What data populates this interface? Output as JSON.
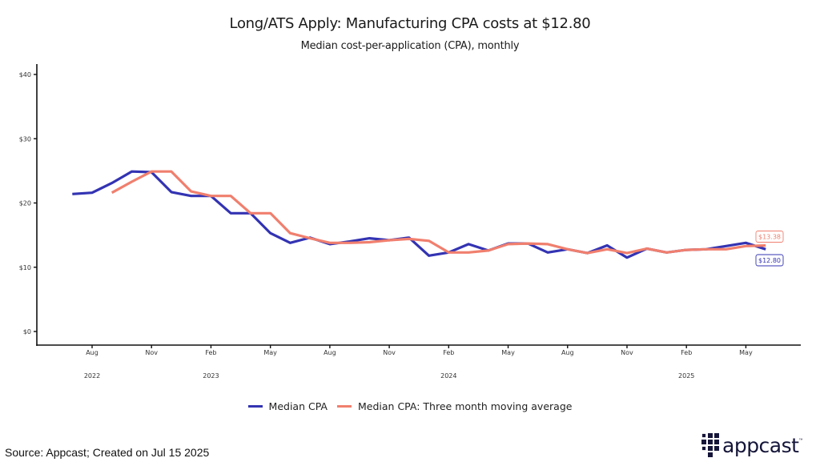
{
  "title": "Long/ATS Apply: Manufacturing CPA costs at $12.80",
  "subtitle": "Median cost-per-application (CPA), monthly",
  "source": "Source: Appcast; Created on Jul 15 2025",
  "logo": {
    "text": "appcast",
    "tm": "™"
  },
  "colors": {
    "median": "#3333b3",
    "moving_avg": "#f07f6e"
  },
  "chart_data": {
    "type": "line",
    "title": "Long/ATS Apply: Manufacturing CPA costs at $12.80",
    "subtitle": "Median cost-per-application (CPA), monthly",
    "xlabel": "",
    "ylabel": "",
    "ylim": [
      0,
      40
    ],
    "yticks": [
      0,
      10,
      20,
      30,
      40
    ],
    "ytick_labels": [
      "$0",
      "$10",
      "$20",
      "$30",
      "$40"
    ],
    "x_start": "2022-06",
    "x_end": "2025-07",
    "xticks": [
      {
        "month": "2022-08",
        "label": "Aug"
      },
      {
        "month": "2022-11",
        "label": "Nov"
      },
      {
        "month": "2023-02",
        "label": "Feb"
      },
      {
        "month": "2023-05",
        "label": "May"
      },
      {
        "month": "2023-08",
        "label": "Aug"
      },
      {
        "month": "2023-11",
        "label": "Nov"
      },
      {
        "month": "2024-02",
        "label": "Feb"
      },
      {
        "month": "2024-05",
        "label": "May"
      },
      {
        "month": "2024-08",
        "label": "Aug"
      },
      {
        "month": "2024-11",
        "label": "Nov"
      },
      {
        "month": "2025-02",
        "label": "Feb"
      },
      {
        "month": "2025-05",
        "label": "May"
      }
    ],
    "year_labels": [
      {
        "month": "2022-08",
        "label": "2022"
      },
      {
        "month": "2023-02",
        "label": "2023"
      },
      {
        "month": "2024-02",
        "label": "2024"
      },
      {
        "month": "2025-02",
        "label": "2025"
      }
    ],
    "grid": false,
    "legend_position": "bottom",
    "series": [
      {
        "name": "Median CPA",
        "color": "#3333b3",
        "start": "2022-07",
        "values": [
          21.4,
          21.6,
          23.1,
          24.9,
          24.8,
          21.7,
          21.1,
          21.1,
          18.4,
          18.4,
          15.3,
          13.8,
          14.6,
          13.6,
          14.0,
          14.5,
          14.2,
          14.6,
          11.8,
          12.3,
          13.6,
          12.6,
          13.7,
          13.7,
          12.3,
          12.8,
          12.2,
          13.4,
          11.5,
          12.9,
          12.3,
          12.7,
          12.8,
          13.3,
          13.8,
          12.8
        ],
        "end_label": "$12.80"
      },
      {
        "name": "Median CPA: Three month moving average",
        "color": "#f07f6e",
        "start": "2022-09",
        "values": [
          21.6,
          23.3,
          24.9,
          24.9,
          21.8,
          21.1,
          21.1,
          18.4,
          18.4,
          15.3,
          14.5,
          13.8,
          13.8,
          13.9,
          14.2,
          14.4,
          14.1,
          12.3,
          12.3,
          12.6,
          13.6,
          13.7,
          13.6,
          12.8,
          12.2,
          12.8,
          12.2,
          12.9,
          12.3,
          12.7,
          12.8,
          12.8,
          13.3,
          13.38
        ],
        "end_label": "$13.38"
      }
    ]
  }
}
